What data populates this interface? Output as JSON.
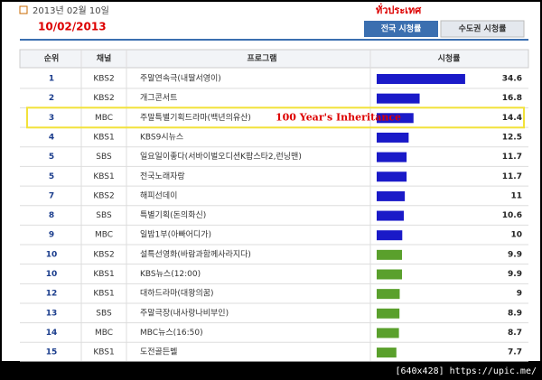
{
  "header": {
    "date": "2013년 02월 10일",
    "date_note": "10/02/2013",
    "region_note": "ทั่วประเทศ",
    "tabs": [
      "전국 시청률",
      "수도권 시청률"
    ]
  },
  "table": {
    "columns": [
      "순위",
      "채널",
      "프로그램",
      "시청률"
    ],
    "rows": [
      {
        "rank": 1,
        "channel": "KBS2",
        "program": "주말연속극(내딸서영이)",
        "rating": 34.6,
        "color": "#1a1ac8"
      },
      {
        "rank": 2,
        "channel": "KBS2",
        "program": "개그콘서트",
        "rating": 16.8,
        "color": "#1a1ac8"
      },
      {
        "rank": 3,
        "channel": "MBC",
        "program": "주말특별기획드라마(백년의유산)",
        "rating": 14.4,
        "color": "#1a1ac8"
      },
      {
        "rank": 4,
        "channel": "KBS1",
        "program": "KBS9시뉴스",
        "rating": 12.5,
        "color": "#1a1ac8"
      },
      {
        "rank": 5,
        "channel": "SBS",
        "program": "일요일이좋다(서바이벌오디션K팝스타2,런닝맨)",
        "rating": 11.7,
        "color": "#1a1ac8"
      },
      {
        "rank": 5,
        "channel": "KBS1",
        "program": "전국노래자랑",
        "rating": 11.7,
        "color": "#1a1ac8"
      },
      {
        "rank": 7,
        "channel": "KBS2",
        "program": "해피선데이",
        "rating": 11,
        "color": "#1a1ac8"
      },
      {
        "rank": 8,
        "channel": "SBS",
        "program": "특별기획(돈의화신)",
        "rating": 10.6,
        "color": "#1a1ac8"
      },
      {
        "rank": 9,
        "channel": "MBC",
        "program": "일밤1부(아빠어디가)",
        "rating": 10,
        "color": "#1a1ac8"
      },
      {
        "rank": 10,
        "channel": "KBS2",
        "program": "설특선영화(바람과함께사라지다)",
        "rating": 9.9,
        "color": "#5aa02c"
      },
      {
        "rank": 10,
        "channel": "KBS1",
        "program": "KBS뉴스(12:00)",
        "rating": 9.9,
        "color": "#5aa02c"
      },
      {
        "rank": 12,
        "channel": "KBS1",
        "program": "대하드라마(대왕의꿈)",
        "rating": 9,
        "color": "#5aa02c"
      },
      {
        "rank": 13,
        "channel": "SBS",
        "program": "주말극장(내사랑나비부인)",
        "rating": 8.9,
        "color": "#5aa02c"
      },
      {
        "rank": 14,
        "channel": "MBC",
        "program": "MBC뉴스(16:50)",
        "rating": 8.7,
        "color": "#5aa02c"
      },
      {
        "rank": 15,
        "channel": "KBS1",
        "program": "도전골든벨",
        "rating": 7.7,
        "color": "#5aa02c"
      }
    ]
  },
  "annotation": "100 Year's Inheritance",
  "watermark": "[640x428] https://upic.me/"
}
